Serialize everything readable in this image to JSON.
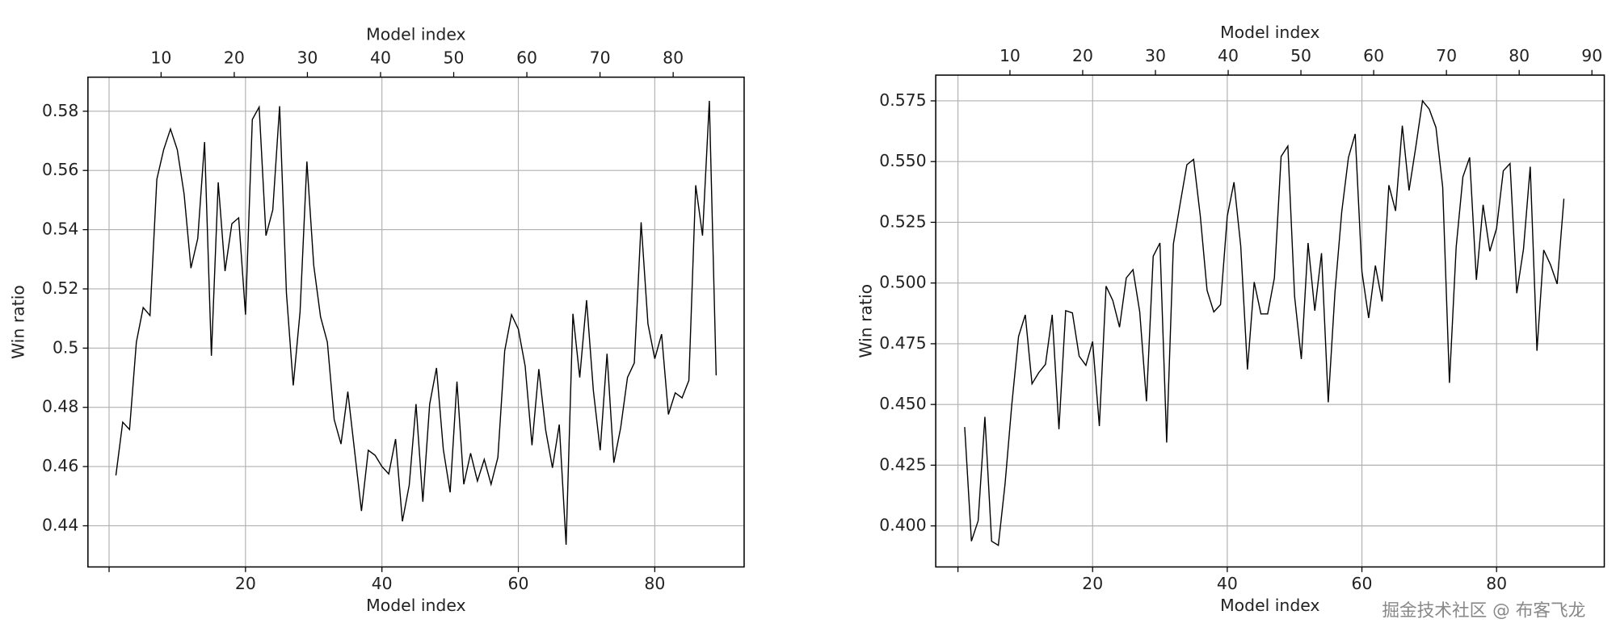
{
  "chart_data": [
    {
      "type": "line",
      "xlabel": "Model index",
      "x2label": "Model index",
      "ylabel": "Win ratio",
      "grid": true,
      "color": "#000000",
      "xlim": [
        -3.1,
        93.1
      ],
      "xticks": [
        {
          "value": 0,
          "label": null
        },
        20,
        40,
        60,
        80
      ],
      "x2lim": [
        0,
        89.7
      ],
      "x2ticks": [
        10,
        20,
        30,
        40,
        50,
        60,
        70,
        80
      ],
      "ylim": [
        0.4261,
        0.5915
      ],
      "yticks": [
        0.44,
        0.46,
        0.48,
        0.5,
        0.52,
        0.54,
        0.56,
        0.58
      ],
      "x": [
        1,
        2,
        3,
        4,
        5,
        6,
        7,
        8,
        9,
        10,
        11,
        12,
        13,
        14,
        15,
        16,
        17,
        18,
        19,
        20,
        21,
        22,
        23,
        24,
        25,
        26,
        27,
        28,
        29,
        30,
        31,
        32,
        33,
        34,
        35,
        36,
        37,
        38,
        39,
        40,
        41,
        42,
        43,
        44,
        45,
        46,
        47,
        48,
        49,
        50,
        51,
        52,
        53,
        54,
        55,
        56,
        57,
        58,
        59,
        60,
        61,
        62,
        63,
        64,
        65,
        66,
        67,
        68,
        69,
        70,
        71,
        72,
        73,
        74,
        75,
        76,
        77,
        78,
        79,
        80,
        81,
        82,
        83,
        84,
        85,
        86,
        87,
        88,
        89
      ],
      "series": [
        {
          "values": [
            0.457,
            0.475,
            0.4725,
            0.502,
            0.5137,
            0.511,
            0.557,
            0.567,
            0.574,
            0.567,
            0.552,
            0.527,
            0.537,
            0.5696,
            0.4974,
            0.556,
            0.526,
            0.542,
            0.544,
            0.5113,
            0.5772,
            0.5814,
            0.538,
            0.5467,
            0.5817,
            0.5186,
            0.4874,
            0.5123,
            0.563,
            0.528,
            0.5106,
            0.502,
            0.4759,
            0.4676,
            0.4853,
            0.4651,
            0.445,
            0.4655,
            0.4638,
            0.46,
            0.4575,
            0.4693,
            0.4415,
            0.4537,
            0.4811,
            0.4481,
            0.4811,
            0.4933,
            0.4658,
            0.4513,
            0.4887,
            0.454,
            0.4645,
            0.4551,
            0.4624,
            0.454,
            0.4631,
            0.4991,
            0.5113,
            0.5064,
            0.4939,
            0.4672,
            0.4929,
            0.4724,
            0.4596,
            0.4742,
            0.4336,
            0.5116,
            0.4901,
            0.5162,
            0.4856,
            0.4655,
            0.4981,
            0.4613,
            0.4731,
            0.4901,
            0.495,
            0.5425,
            0.5082,
            0.4964,
            0.5047,
            0.4776,
            0.4849,
            0.4832,
            0.4891,
            0.555,
            0.538,
            0.5835,
            0.4908
          ]
        }
      ]
    },
    {
      "type": "line",
      "xlabel": "Model index",
      "x2label": "Model index",
      "ylabel": "Win ratio",
      "grid": true,
      "color": "#000000",
      "xlim": [
        -3.3,
        96.0
      ],
      "xticks": [
        {
          "value": 0,
          "label": null
        },
        20,
        40,
        60,
        80
      ],
      "x2lim": [
        -0.2,
        91.7
      ],
      "x2ticks": [
        10,
        20,
        30,
        40,
        50,
        60,
        70,
        80,
        90
      ],
      "ylim": [
        0.3831,
        0.5856
      ],
      "yticks": [
        {
          "value": 0.4,
          "label": "0.400"
        },
        0.425,
        {
          "value": 0.45,
          "label": "0.450"
        },
        0.475,
        {
          "value": 0.5,
          "label": "0.500"
        },
        0.525,
        {
          "value": 0.55,
          "label": "0.550"
        },
        0.575
      ],
      "x": [
        1,
        2,
        3,
        4,
        5,
        6,
        7,
        8,
        9,
        10,
        11,
        12,
        13,
        14,
        15,
        16,
        17,
        18,
        19,
        20,
        21,
        22,
        23,
        24,
        25,
        26,
        27,
        28,
        29,
        30,
        31,
        32,
        33,
        34,
        35,
        36,
        37,
        38,
        39,
        40,
        41,
        42,
        43,
        44,
        45,
        46,
        47,
        48,
        49,
        50,
        51,
        52,
        53,
        54,
        55,
        56,
        57,
        58,
        59,
        60,
        61,
        62,
        63,
        64,
        65,
        66,
        67,
        68,
        69,
        70,
        71,
        72,
        73,
        74,
        75,
        76,
        77,
        78,
        79,
        80,
        81,
        82,
        83,
        84,
        85,
        86,
        87,
        88,
        89,
        90
      ],
      "series": [
        {
          "values": [
            0.4407,
            0.3937,
            0.4021,
            0.4449,
            0.3937,
            0.392,
            0.4174,
            0.45,
            0.478,
            0.4869,
            0.4585,
            0.4631,
            0.4665,
            0.4869,
            0.4398,
            0.4886,
            0.4877,
            0.4699,
            0.4661,
            0.4759,
            0.4411,
            0.4987,
            0.4928,
            0.4818,
            0.5021,
            0.5055,
            0.4881,
            0.4513,
            0.511,
            0.5165,
            0.4343,
            0.5161,
            0.5326,
            0.5487,
            0.5509,
            0.5275,
            0.497,
            0.4881,
            0.4911,
            0.5275,
            0.5415,
            0.5153,
            0.4644,
            0.5004,
            0.4873,
            0.4873,
            0.5021,
            0.5521,
            0.5564,
            0.4945,
            0.4687,
            0.5165,
            0.4886,
            0.5123,
            0.4509,
            0.4963,
            0.5292,
            0.5517,
            0.5614,
            0.5047,
            0.4856,
            0.5072,
            0.4924,
            0.5403,
            0.5297,
            0.5648,
            0.5381,
            0.556,
            0.575,
            0.5716,
            0.564,
            0.5394,
            0.4589,
            0.5148,
            0.5437,
            0.5517,
            0.5013,
            0.5322,
            0.5131,
            0.5225,
            0.5462,
            0.5492,
            0.4958,
            0.514,
            0.5479,
            0.4721,
            0.5136,
            0.5076,
            0.4996,
            0.5347
          ]
        }
      ]
    }
  ],
  "watermark": "掘金技术社区 @ 布客飞龙"
}
